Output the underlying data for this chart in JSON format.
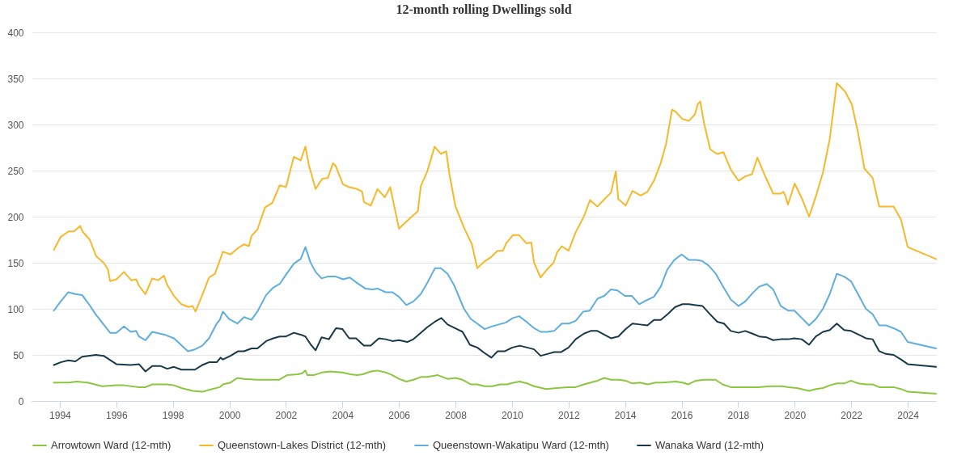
{
  "chart_data": {
    "type": "line",
    "title": "12-month rolling Dwellings sold",
    "legend": "bottom",
    "grid": "y",
    "line_style": "solid",
    "xlim": [
      1993,
      2025
    ],
    "xticks": [
      1994,
      1996,
      1998,
      2000,
      2002,
      2004,
      2006,
      2008,
      2010,
      2012,
      2014,
      2016,
      2018,
      2020,
      2022,
      2024
    ],
    "ylim": [
      0,
      400
    ],
    "yticks": [
      0,
      50,
      100,
      150,
      200,
      250,
      300,
      350,
      400
    ],
    "series": [
      {
        "name": "Arrowtown Ward (12-mth)",
        "color": "#8cc63f",
        "x": [
          1993.79,
          1994.3,
          1994.6,
          1994.98,
          1995.5,
          1996.0,
          1996.27,
          1996.8,
          1997.03,
          1997.27,
          1997.8,
          1998.04,
          1998.3,
          1998.7,
          1999.04,
          1999.28,
          1999.66,
          1999.77,
          2000.04,
          2000.28,
          2000.52,
          2000.99,
          2001.75,
          2002.04,
          2002.42,
          2002.57,
          2002.69,
          2002.76,
          2002.98,
          2003.28,
          2003.57,
          2004.0,
          2004.29,
          2004.52,
          2004.72,
          2005.0,
          2005.24,
          2005.53,
          2005.77,
          2006.0,
          2006.26,
          2006.51,
          2006.77,
          2007.0,
          2007.38,
          2007.72,
          2008.0,
          2008.25,
          2008.54,
          2008.77,
          2009.03,
          2009.3,
          2009.58,
          2009.82,
          2010.06,
          2010.27,
          2010.54,
          2010.78,
          2011.2,
          2011.59,
          2011.97,
          2012.25,
          2012.54,
          2012.78,
          2013.02,
          2013.26,
          2013.5,
          2013.79,
          2014.02,
          2014.26,
          2014.53,
          2014.79,
          2015.07,
          2015.31,
          2015.79,
          2016.03,
          2016.24,
          2016.5,
          2016.79,
          2017.2,
          2017.45,
          2017.74,
          2018.01,
          2018.27,
          2018.71,
          2019.12,
          2019.56,
          2019.78,
          2020.08,
          2020.51,
          2020.75,
          2021.0,
          2021.24,
          2021.49,
          2021.75,
          2021.99,
          2022.26,
          2022.52,
          2022.76,
          2022.99,
          2023.5,
          2023.76,
          2024.0,
          2025.0
        ],
        "values": [
          20,
          20,
          21,
          20,
          16,
          17,
          17,
          15,
          15,
          18,
          18,
          17,
          14,
          11,
          10,
          12,
          15,
          18,
          20,
          25,
          24,
          23,
          23,
          28,
          29,
          30,
          33,
          28,
          28,
          31,
          32,
          31,
          29,
          28,
          29,
          32,
          33,
          31,
          28,
          24,
          21,
          23,
          26,
          26,
          28,
          24,
          25,
          23,
          18,
          18,
          16,
          16,
          18,
          18,
          20,
          21,
          19,
          16,
          13,
          14,
          15,
          15,
          18,
          20,
          22,
          25,
          23,
          23,
          22,
          19,
          20,
          18,
          20,
          20,
          21,
          20,
          18,
          22,
          23,
          23,
          18,
          15,
          15,
          15,
          15,
          16,
          16,
          15,
          14,
          11,
          13,
          14,
          17,
          19,
          19,
          22,
          19,
          18,
          18,
          15,
          15,
          13,
          10,
          8
        ]
      },
      {
        "name": "Queenstown-Lakes District (12-mth)",
        "color": "#f7b829",
        "x": [
          1993.79,
          1994.03,
          1994.31,
          1994.5,
          1994.72,
          1994.8,
          1995.06,
          1995.29,
          1995.55,
          1995.7,
          1995.78,
          1996.0,
          1996.27,
          1996.53,
          1996.7,
          1996.8,
          1997.03,
          1997.27,
          1997.48,
          1997.68,
          1997.8,
          1998.04,
          1998.3,
          1998.56,
          1998.7,
          1998.8,
          1999.04,
          1999.28,
          1999.49,
          1999.77,
          2000.04,
          2000.31,
          2000.52,
          2000.69,
          2000.78,
          2000.99,
          2001.26,
          2001.52,
          2001.78,
          2002.0,
          2002.28,
          2002.52,
          2002.69,
          2002.81,
          2003.05,
          2003.28,
          2003.48,
          2003.67,
          2003.76,
          2004.02,
          2004.24,
          2004.52,
          2004.7,
          2004.76,
          2005.0,
          2005.24,
          2005.5,
          2005.69,
          2006.0,
          2006.34,
          2006.67,
          2006.77,
          2007.0,
          2007.26,
          2007.48,
          2007.67,
          2007.79,
          2008.0,
          2008.3,
          2008.58,
          2008.77,
          2009.01,
          2009.25,
          2009.49,
          2009.68,
          2009.79,
          2010.03,
          2010.25,
          2010.51,
          2010.68,
          2010.78,
          2011.01,
          2011.25,
          2011.47,
          2011.59,
          2011.76,
          2012.0,
          2012.25,
          2012.54,
          2012.76,
          2013.02,
          2013.3,
          2013.5,
          2013.67,
          2013.76,
          2014.02,
          2014.26,
          2014.55,
          2014.79,
          2015.02,
          2015.26,
          2015.45,
          2015.66,
          2015.79,
          2016.02,
          2016.26,
          2016.47,
          2016.57,
          2016.66,
          2016.79,
          2017.01,
          2017.26,
          2017.48,
          2017.74,
          2018.01,
          2018.27,
          2018.49,
          2018.68,
          2018.94,
          2019.24,
          2019.51,
          2019.6,
          2019.68,
          2019.76,
          2020.0,
          2020.25,
          2020.51,
          2020.75,
          2021.0,
          2021.24,
          2021.49,
          2021.78,
          2022.02,
          2022.23,
          2022.47,
          2022.76,
          2022.99,
          2023.23,
          2023.5,
          2023.76,
          2024.0,
          2025.0
        ],
        "values": [
          164,
          178,
          184,
          184,
          190,
          184,
          175,
          157,
          150,
          143,
          130,
          132,
          140,
          131,
          132,
          125,
          116,
          133,
          131,
          136,
          126,
          114,
          105,
          102,
          103,
          97,
          115,
          134,
          138,
          162,
          159,
          166,
          170,
          168,
          179,
          186,
          210,
          215,
          234,
          232,
          265,
          261,
          276,
          256,
          230,
          241,
          242,
          258,
          255,
          235,
          232,
          230,
          227,
          216,
          212,
          230,
          221,
          232,
          187,
          197,
          206,
          233,
          249,
          276,
          268,
          271,
          245,
          211,
          188,
          170,
          144,
          151,
          156,
          163,
          163,
          171,
          180,
          180,
          171,
          172,
          150,
          134,
          143,
          150,
          161,
          168,
          163,
          183,
          200,
          218,
          211,
          220,
          226,
          249,
          219,
          212,
          228,
          223,
          227,
          239,
          258,
          279,
          316,
          314,
          306,
          304,
          311,
          322,
          325,
          302,
          273,
          268,
          270,
          251,
          239,
          244,
          246,
          264,
          245,
          225,
          225,
          227,
          222,
          213,
          236,
          220,
          200,
          222,
          248,
          284,
          345,
          336,
          322,
          293,
          252,
          242,
          211,
          211,
          211,
          197,
          167,
          154
        ]
      },
      {
        "name": "Queenstown-Wakatipu Ward (12-mth)",
        "color": "#5eaee0",
        "x": [
          1993.79,
          1994.03,
          1994.3,
          1994.55,
          1994.79,
          1995.03,
          1995.27,
          1995.78,
          1996.0,
          1996.27,
          1996.51,
          1996.7,
          1996.8,
          1997.03,
          1997.27,
          1997.7,
          1998.04,
          1998.53,
          1998.78,
          1999.04,
          1999.28,
          1999.55,
          1999.66,
          1999.77,
          1999.99,
          2000.28,
          2000.52,
          2000.78,
          2000.99,
          2001.3,
          2001.55,
          2001.78,
          2002.0,
          2002.28,
          2002.52,
          2002.69,
          2002.86,
          2003.05,
          2003.26,
          2003.48,
          2003.76,
          2004.03,
          2004.26,
          2004.52,
          2004.81,
          2005.05,
          2005.24,
          2005.53,
          2005.77,
          2006.0,
          2006.26,
          2006.51,
          2006.77,
          2007.0,
          2007.27,
          2007.48,
          2007.72,
          2007.96,
          2008.3,
          2008.54,
          2008.77,
          2009.03,
          2009.3,
          2009.53,
          2009.77,
          2010.03,
          2010.25,
          2010.51,
          2010.78,
          2011.01,
          2011.25,
          2011.49,
          2011.76,
          2012.01,
          2012.25,
          2012.52,
          2012.75,
          2013.02,
          2013.26,
          2013.5,
          2013.73,
          2013.99,
          2014.24,
          2014.5,
          2014.74,
          2015.02,
          2015.26,
          2015.5,
          2015.74,
          2016.0,
          2016.26,
          2016.5,
          2016.72,
          2016.95,
          2017.21,
          2017.45,
          2017.74,
          2018.01,
          2018.25,
          2018.51,
          2018.74,
          2019.01,
          2019.24,
          2019.51,
          2019.78,
          2019.99,
          2020.25,
          2020.51,
          2020.75,
          2021.0,
          2021.24,
          2021.49,
          2021.75,
          2021.99,
          2022.26,
          2022.52,
          2022.76,
          2022.99,
          2023.23,
          2023.5,
          2023.76,
          2024.0,
          2025.0
        ],
        "values": [
          98,
          108,
          118,
          116,
          115,
          105,
          94,
          74,
          74,
          81,
          75,
          76,
          70,
          66,
          75,
          72,
          68,
          54,
          56,
          60,
          68,
          84,
          88,
          97,
          89,
          84,
          91,
          88,
          97,
          115,
          123,
          127,
          137,
          149,
          154,
          167,
          151,
          140,
          133,
          135,
          135,
          132,
          134,
          128,
          122,
          121,
          122,
          118,
          118,
          113,
          104,
          108,
          116,
          128,
          144,
          144,
          138,
          125,
          100,
          89,
          84,
          78,
          81,
          83,
          85,
          90,
          92,
          86,
          79,
          75,
          75,
          76,
          84,
          84,
          87,
          97,
          98,
          111,
          114,
          121,
          120,
          114,
          114,
          105,
          109,
          113,
          124,
          143,
          153,
          159,
          153,
          153,
          152,
          147,
          138,
          125,
          110,
          103,
          108,
          117,
          124,
          127,
          121,
          103,
          98,
          98,
          90,
          82,
          89,
          100,
          116,
          138,
          135,
          130,
          115,
          100,
          94,
          82,
          82,
          79,
          75,
          64,
          57
        ]
      },
      {
        "name": "Wanaka Ward (12-mth)",
        "color": "#17394a",
        "x": [
          1993.79,
          1994.03,
          1994.3,
          1994.55,
          1994.79,
          1995.27,
          1995.55,
          1996.0,
          1996.51,
          1996.8,
          1997.03,
          1997.27,
          1997.56,
          1997.8,
          1998.04,
          1998.3,
          1998.78,
          1999.04,
          1999.28,
          1999.55,
          1999.69,
          1999.77,
          2000.04,
          2000.31,
          2000.52,
          2000.78,
          2000.99,
          2001.3,
          2001.55,
          2001.78,
          2002.0,
          2002.28,
          2002.52,
          2002.69,
          2002.86,
          2003.05,
          2003.26,
          2003.52,
          2003.77,
          2004.0,
          2004.24,
          2004.48,
          2004.76,
          2005.0,
          2005.29,
          2005.53,
          2005.77,
          2006.0,
          2006.29,
          2006.51,
          2006.77,
          2007.0,
          2007.27,
          2007.5,
          2007.72,
          2007.98,
          2008.25,
          2008.51,
          2008.77,
          2009.03,
          2009.27,
          2009.49,
          2009.75,
          2010.01,
          2010.27,
          2010.54,
          2010.78,
          2011.01,
          2011.25,
          2011.49,
          2011.73,
          2012.0,
          2012.25,
          2012.54,
          2012.78,
          2013.02,
          2013.26,
          2013.5,
          2013.76,
          2014.02,
          2014.26,
          2014.53,
          2014.79,
          2015.02,
          2015.26,
          2015.5,
          2015.77,
          2016.03,
          2016.26,
          2016.5,
          2016.74,
          2017.01,
          2017.26,
          2017.5,
          2017.74,
          2018.01,
          2018.25,
          2018.51,
          2018.74,
          2019.01,
          2019.24,
          2019.51,
          2019.78,
          2019.99,
          2020.25,
          2020.51,
          2020.75,
          2021.0,
          2021.24,
          2021.49,
          2021.75,
          2021.99,
          2022.26,
          2022.52,
          2022.76,
          2022.99,
          2023.23,
          2023.5,
          2023.76,
          2024.0,
          2025.0
        ],
        "values": [
          39,
          42,
          44,
          43,
          48,
          50,
          49,
          40,
          39,
          40,
          32,
          38,
          38,
          35,
          37,
          34,
          34,
          39,
          42,
          42,
          47,
          45,
          49,
          54,
          54,
          57,
          57,
          65,
          68,
          70,
          70,
          74,
          72,
          70,
          62,
          55,
          69,
          67,
          79,
          78,
          68,
          68,
          60,
          60,
          68,
          67,
          65,
          66,
          64,
          67,
          74,
          80,
          86,
          90,
          83,
          79,
          75,
          61,
          58,
          52,
          47,
          54,
          54,
          58,
          60,
          58,
          56,
          49,
          51,
          53,
          53,
          58,
          67,
          73,
          76,
          76,
          72,
          68,
          70,
          78,
          84,
          83,
          82,
          88,
          88,
          94,
          102,
          105,
          105,
          104,
          103,
          94,
          86,
          84,
          76,
          74,
          76,
          73,
          70,
          69,
          66,
          67,
          67,
          68,
          67,
          61,
          70,
          75,
          77,
          84,
          77,
          76,
          72,
          68,
          67,
          54,
          51,
          50,
          45,
          40,
          37
        ]
      }
    ]
  }
}
